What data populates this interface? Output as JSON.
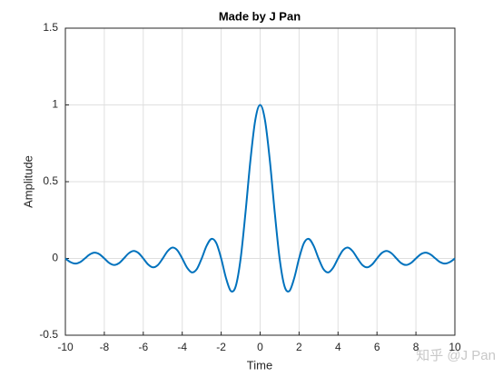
{
  "chart_data": {
    "type": "line",
    "title": "Made by J Pan",
    "xlabel": "Time",
    "ylabel": "Amplitude",
    "watermark": "知乎 @J Pan",
    "xlim": [
      -10,
      10
    ],
    "xticks": [
      -10,
      -8,
      -6,
      -4,
      -2,
      0,
      2,
      4,
      6,
      8,
      10
    ],
    "ylim": [
      -0.5,
      1.5
    ],
    "yticks": [
      -0.5,
      0,
      0.5,
      1,
      1.5
    ],
    "grid": true,
    "x": [
      -10,
      -9.75,
      -9.5,
      -9.25,
      -9,
      -8.75,
      -8.5,
      -8.25,
      -8,
      -7.75,
      -7.5,
      -7.25,
      -7,
      -6.75,
      -6.5,
      -6.25,
      -6,
      -5.75,
      -5.5,
      -5.25,
      -5,
      -4.75,
      -4.5,
      -4.25,
      -4,
      -3.75,
      -3.5,
      -3.25,
      -3,
      -2.75,
      -2.5,
      -2.25,
      -2,
      -1.75,
      -1.5,
      -1.25,
      -1,
      -0.75,
      -0.5,
      -0.25,
      0,
      0.25,
      0.5,
      0.75,
      1,
      1.25,
      1.5,
      1.75,
      2,
      2.25,
      2.5,
      2.75,
      3,
      3.25,
      3.5,
      3.75,
      4,
      4.25,
      4.5,
      4.75,
      5,
      5.25,
      5.5,
      5.75,
      6,
      6.25,
      6.5,
      6.75,
      7,
      7.25,
      7.5,
      7.75,
      8,
      8.25,
      8.5,
      8.75,
      9,
      9.25,
      9.5,
      9.75,
      10
    ],
    "series": [
      {
        "color": "#0072bd",
        "values": [
          0,
          -0.0231,
          -0.0335,
          -0.0243,
          0,
          0.0257,
          0.0374,
          0.0273,
          0,
          -0.029,
          -0.0424,
          -0.031,
          0,
          0.0333,
          0.049,
          0.036,
          0,
          -0.0391,
          -0.0579,
          -0.0429,
          0,
          0.0474,
          0.0707,
          0.053,
          0,
          -0.06,
          -0.0909,
          -0.0693,
          0,
          0.0818,
          0.1273,
          0.1,
          0,
          -0.1286,
          -0.2122,
          -0.1801,
          0,
          0.3001,
          0.6366,
          0.9003,
          1,
          0.9003,
          0.6366,
          0.3001,
          0,
          -0.1801,
          -0.2122,
          -0.1286,
          0,
          0.1,
          0.1273,
          0.0818,
          0,
          -0.0693,
          -0.0909,
          -0.06,
          0,
          0.053,
          0.0707,
          0.0474,
          0,
          -0.0429,
          -0.0579,
          -0.0391,
          0,
          0.036,
          0.049,
          0.0333,
          0,
          -0.031,
          -0.0424,
          -0.029,
          0,
          0.0273,
          0.0374,
          0.0257,
          0,
          -0.0243,
          -0.0335,
          -0.0231,
          0
        ]
      }
    ]
  }
}
